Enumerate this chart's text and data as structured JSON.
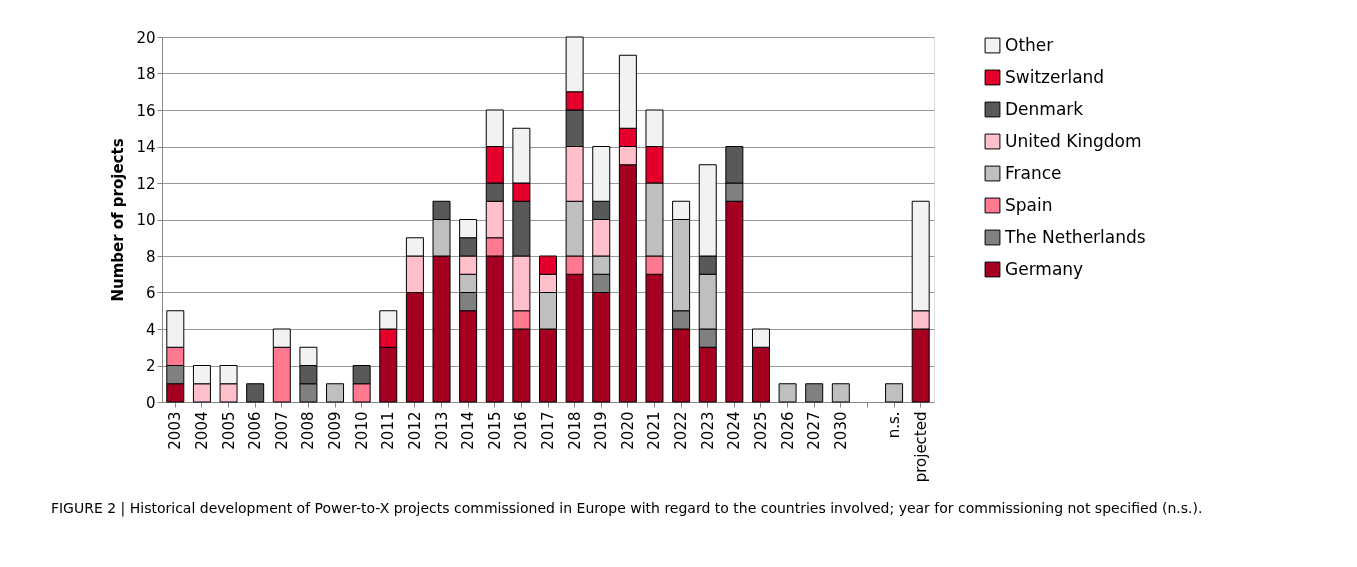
{
  "chart_data": {
    "type": "bar",
    "stacked": true,
    "ylabel": "Number of projects",
    "categories": [
      "2003",
      "2004",
      "2005",
      "2006",
      "2007",
      "2008",
      "2009",
      "2010",
      "2011",
      "2012",
      "2013",
      "2014",
      "2015",
      "2016",
      "2017",
      "2018",
      "2019",
      "2020",
      "2021",
      "2022",
      "2023",
      "2024",
      "2025",
      "2026",
      "2027",
      "2030",
      null,
      "n.s.",
      "projected"
    ],
    "series": [
      {
        "name": "Germany",
        "color": "#a50021",
        "values": [
          1,
          null,
          null,
          null,
          null,
          null,
          null,
          null,
          3,
          6,
          8,
          5,
          8,
          4,
          4,
          7,
          6,
          13,
          7,
          4,
          3,
          11,
          3,
          null,
          null,
          null,
          null,
          null,
          4
        ]
      },
      {
        "name": "The Netherlands",
        "color": "#808080",
        "values": [
          1,
          null,
          null,
          null,
          null,
          1,
          null,
          null,
          null,
          null,
          null,
          1,
          null,
          null,
          null,
          null,
          1,
          null,
          null,
          1,
          1,
          1,
          null,
          null,
          1,
          null,
          null,
          null,
          null
        ]
      },
      {
        "name": "Spain",
        "color": "#ff7a90",
        "values": [
          1,
          null,
          null,
          null,
          3,
          null,
          null,
          1,
          null,
          null,
          null,
          null,
          1,
          1,
          null,
          1,
          null,
          null,
          1,
          null,
          null,
          null,
          null,
          null,
          null,
          null,
          null,
          null,
          null
        ]
      },
      {
        "name": "France",
        "color": "#bfbfbf",
        "values": [
          null,
          null,
          null,
          null,
          null,
          null,
          1,
          null,
          null,
          null,
          2,
          1,
          null,
          null,
          2,
          3,
          1,
          null,
          4,
          5,
          3,
          null,
          null,
          1,
          null,
          1,
          null,
          1,
          null
        ]
      },
      {
        "name": "United Kingdom",
        "color": "#ffc0cb",
        "values": [
          null,
          1,
          1,
          null,
          null,
          null,
          null,
          null,
          null,
          2,
          null,
          1,
          2,
          3,
          1,
          3,
          2,
          1,
          null,
          null,
          null,
          null,
          null,
          null,
          null,
          null,
          null,
          null,
          1
        ]
      },
      {
        "name": "Denmark",
        "color": "#595959",
        "values": [
          null,
          null,
          null,
          1,
          null,
          1,
          null,
          1,
          null,
          null,
          1,
          1,
          1,
          3,
          null,
          2,
          1,
          null,
          null,
          null,
          1,
          2,
          null,
          null,
          null,
          null,
          null,
          null,
          null
        ]
      },
      {
        "name": "Switzerland",
        "color": "#e4002b",
        "values": [
          null,
          null,
          null,
          null,
          null,
          null,
          null,
          null,
          1,
          null,
          null,
          null,
          2,
          1,
          1,
          1,
          null,
          1,
          2,
          null,
          null,
          null,
          null,
          null,
          null,
          null,
          null,
          null,
          null
        ]
      },
      {
        "name": "Other",
        "color": "#f2f2f2",
        "values": [
          2,
          1,
          1,
          null,
          1,
          1,
          null,
          null,
          1,
          1,
          null,
          1,
          2,
          3,
          null,
          3,
          3,
          4,
          2,
          1,
          5,
          null,
          1,
          null,
          null,
          null,
          null,
          null,
          6
        ]
      }
    ],
    "ylim": [
      0,
      20
    ],
    "yticks": [
      0,
      2,
      4,
      6,
      8,
      10,
      12,
      14,
      16,
      18,
      20
    ],
    "grid": "y",
    "legend": "right",
    "annotations": [
      "FIGURE 2 | Historical development of Power-to-X projects commissioned in Europe with regard to the countries involved; year for commissioning not specified (n.s.)."
    ]
  }
}
